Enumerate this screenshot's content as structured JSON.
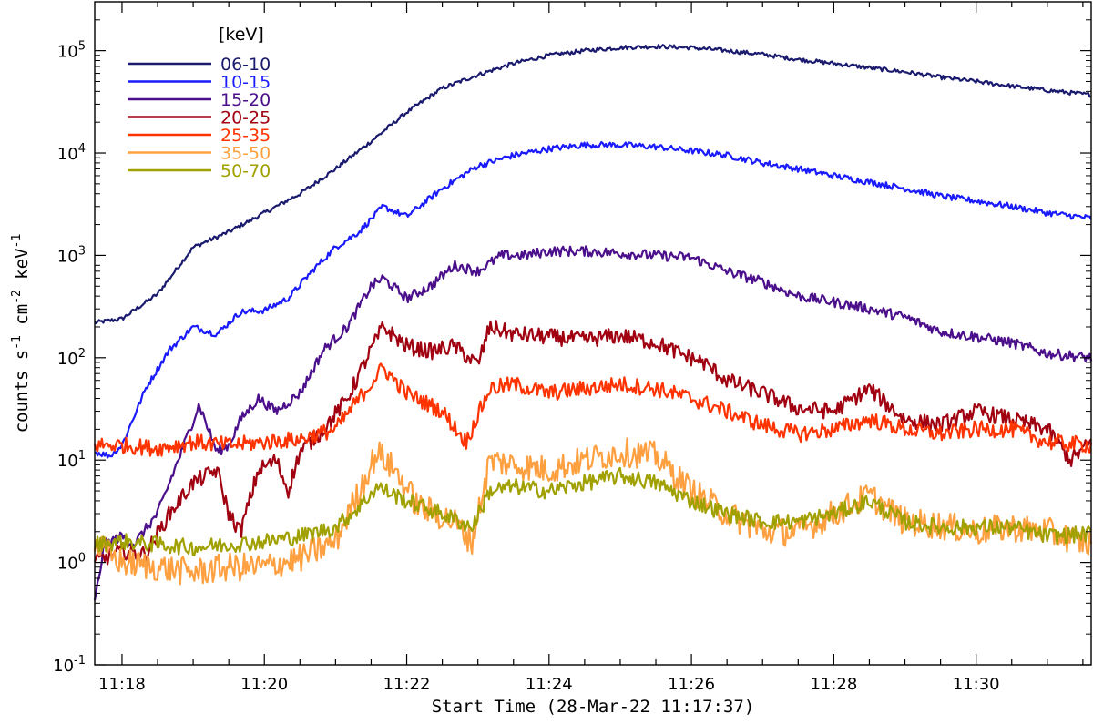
{
  "chart_data": {
    "type": "line",
    "x_axis": {
      "label": "Start Time (28-Mar-22 11:17:37)",
      "range": [
        "11:17:37",
        "11:31:37"
      ],
      "ticks": [
        "11:18",
        "11:20",
        "11:22",
        "11:24",
        "11:26",
        "11:28",
        "11:30"
      ]
    },
    "y_axis": {
      "label_parts": [
        "counts s",
        "-1",
        " cm",
        "-2",
        " keV",
        "-1"
      ],
      "scale": "log",
      "range": [
        0.1,
        300000
      ],
      "ticks": [
        {
          "base": "10",
          "exp": "-1",
          "value": 0.1
        },
        {
          "base": "10",
          "exp": "0",
          "value": 1
        },
        {
          "base": "10",
          "exp": "1",
          "value": 10
        },
        {
          "base": "10",
          "exp": "2",
          "value": 100
        },
        {
          "base": "10",
          "exp": "3",
          "value": 1000
        },
        {
          "base": "10",
          "exp": "4",
          "value": 10000
        },
        {
          "base": "10",
          "exp": "5",
          "value": 100000
        }
      ]
    },
    "legend_title": "[keV]",
    "legend_position": "top-left",
    "series": [
      {
        "name": "06-10",
        "color": "#1a1a6e",
        "noise": 0.02,
        "points": [
          [
            "11:17:37",
            220
          ],
          [
            "11:18:00",
            240
          ],
          [
            "11:18:30",
            420
          ],
          [
            "11:19:00",
            1200
          ],
          [
            "11:19:30",
            1700
          ],
          [
            "11:20:00",
            2600
          ],
          [
            "11:20:30",
            4000
          ],
          [
            "11:21:00",
            7000
          ],
          [
            "11:21:30",
            13000
          ],
          [
            "11:22:00",
            25000
          ],
          [
            "11:22:30",
            43000
          ],
          [
            "11:23:00",
            58000
          ],
          [
            "11:23:30",
            75000
          ],
          [
            "11:24:00",
            90000
          ],
          [
            "11:24:30",
            100000
          ],
          [
            "11:25:00",
            107000
          ],
          [
            "11:25:30",
            110000
          ],
          [
            "11:26:00",
            107000
          ],
          [
            "11:26:30",
            100000
          ],
          [
            "11:27:00",
            92000
          ],
          [
            "11:27:30",
            82000
          ],
          [
            "11:28:00",
            75000
          ],
          [
            "11:28:30",
            68000
          ],
          [
            "11:29:00",
            62000
          ],
          [
            "11:29:30",
            55000
          ],
          [
            "11:30:00",
            50000
          ],
          [
            "11:30:30",
            45000
          ],
          [
            "11:31:00",
            41000
          ],
          [
            "11:31:37",
            37000
          ]
        ]
      },
      {
        "name": "10-15",
        "color": "#1a1aff",
        "noise": 0.03,
        "points": [
          [
            "11:17:37",
            12
          ],
          [
            "11:17:50",
            11
          ],
          [
            "11:18:00",
            14
          ],
          [
            "11:18:20",
            50
          ],
          [
            "11:18:40",
            120
          ],
          [
            "11:19:00",
            200
          ],
          [
            "11:19:20",
            170
          ],
          [
            "11:19:40",
            280
          ],
          [
            "11:20:00",
            290
          ],
          [
            "11:20:20",
            380
          ],
          [
            "11:20:40",
            700
          ],
          [
            "11:21:00",
            1200
          ],
          [
            "11:21:20",
            1700
          ],
          [
            "11:21:40",
            3000
          ],
          [
            "11:22:00",
            2400
          ],
          [
            "11:22:30",
            4500
          ],
          [
            "11:23:00",
            7500
          ],
          [
            "11:23:30",
            9500
          ],
          [
            "11:24:00",
            11000
          ],
          [
            "11:24:30",
            12000
          ],
          [
            "11:25:00",
            12000
          ],
          [
            "11:25:30",
            11500
          ],
          [
            "11:26:00",
            10500
          ],
          [
            "11:26:30",
            9500
          ],
          [
            "11:27:00",
            8000
          ],
          [
            "11:27:30",
            7000
          ],
          [
            "11:28:00",
            6000
          ],
          [
            "11:28:30",
            5200
          ],
          [
            "11:29:00",
            4500
          ],
          [
            "11:29:30",
            3800
          ],
          [
            "11:30:00",
            3400
          ],
          [
            "11:30:30",
            3000
          ],
          [
            "11:31:00",
            2600
          ],
          [
            "11:31:37",
            2300
          ]
        ]
      },
      {
        "name": "15-20",
        "color": "#4b0f8c",
        "noise": 0.05,
        "points": [
          [
            "11:17:37",
            0.4
          ],
          [
            "11:17:45",
            1.5
          ],
          [
            "11:18:00",
            1.8
          ],
          [
            "11:18:10",
            1.5
          ],
          [
            "11:18:30",
            3
          ],
          [
            "11:18:50",
            12
          ],
          [
            "11:19:05",
            35
          ],
          [
            "11:19:20",
            12
          ],
          [
            "11:19:30",
            14
          ],
          [
            "11:19:40",
            25
          ],
          [
            "11:19:55",
            40
          ],
          [
            "11:20:10",
            30
          ],
          [
            "11:20:30",
            45
          ],
          [
            "11:20:50",
            120
          ],
          [
            "11:21:10",
            200
          ],
          [
            "11:21:30",
            500
          ],
          [
            "11:21:40",
            600
          ],
          [
            "11:22:00",
            380
          ],
          [
            "11:22:20",
            500
          ],
          [
            "11:22:40",
            800
          ],
          [
            "11:23:00",
            700
          ],
          [
            "11:23:20",
            1000
          ],
          [
            "11:23:40",
            1000
          ],
          [
            "11:24:00",
            1100
          ],
          [
            "11:24:30",
            1100
          ],
          [
            "11:25:00",
            1050
          ],
          [
            "11:25:30",
            1000
          ],
          [
            "11:26:00",
            950
          ],
          [
            "11:26:30",
            700
          ],
          [
            "11:27:00",
            550
          ],
          [
            "11:27:30",
            400
          ],
          [
            "11:28:00",
            350
          ],
          [
            "11:28:30",
            300
          ],
          [
            "11:29:00",
            250
          ],
          [
            "11:29:30",
            180
          ],
          [
            "11:30:00",
            160
          ],
          [
            "11:30:30",
            140
          ],
          [
            "11:31:00",
            110
          ],
          [
            "11:31:37",
            100
          ]
        ]
      },
      {
        "name": "20-25",
        "color": "#a00010",
        "noise": 0.08,
        "points": [
          [
            "11:17:37",
            1.0
          ],
          [
            "11:18:00",
            1.3
          ],
          [
            "11:18:20",
            1.2
          ],
          [
            "11:18:40",
            3
          ],
          [
            "11:19:00",
            6
          ],
          [
            "11:19:20",
            8
          ],
          [
            "11:19:30",
            3
          ],
          [
            "11:19:40",
            2
          ],
          [
            "11:19:55",
            8
          ],
          [
            "11:20:10",
            10
          ],
          [
            "11:20:20",
            5
          ],
          [
            "11:20:30",
            12
          ],
          [
            "11:20:50",
            20
          ],
          [
            "11:21:10",
            40
          ],
          [
            "11:21:30",
            120
          ],
          [
            "11:21:40",
            200
          ],
          [
            "11:22:00",
            130
          ],
          [
            "11:22:20",
            115
          ],
          [
            "11:22:40",
            130
          ],
          [
            "11:23:00",
            85
          ],
          [
            "11:23:10",
            200
          ],
          [
            "11:23:30",
            170
          ],
          [
            "11:24:00",
            160
          ],
          [
            "11:24:30",
            150
          ],
          [
            "11:25:00",
            165
          ],
          [
            "11:25:30",
            140
          ],
          [
            "11:25:50",
            110
          ],
          [
            "11:26:10",
            90
          ],
          [
            "11:26:30",
            60
          ],
          [
            "11:27:00",
            45
          ],
          [
            "11:27:30",
            32
          ],
          [
            "11:28:00",
            30
          ],
          [
            "11:28:30",
            50
          ],
          [
            "11:28:45",
            35
          ],
          [
            "11:29:00",
            25
          ],
          [
            "11:29:30",
            22
          ],
          [
            "11:30:00",
            30
          ],
          [
            "11:30:30",
            25
          ],
          [
            "11:31:00",
            20
          ],
          [
            "11:31:20",
            10
          ],
          [
            "11:31:37",
            15
          ]
        ]
      },
      {
        "name": "25-35",
        "color": "#ff3300",
        "noise": 0.08,
        "points": [
          [
            "11:17:37",
            14
          ],
          [
            "11:18:00",
            14
          ],
          [
            "11:18:30",
            13
          ],
          [
            "11:19:00",
            15
          ],
          [
            "11:19:30",
            14
          ],
          [
            "11:20:00",
            15
          ],
          [
            "11:20:30",
            16
          ],
          [
            "11:21:00",
            20
          ],
          [
            "11:21:20",
            40
          ],
          [
            "11:21:40",
            80
          ],
          [
            "11:22:00",
            45
          ],
          [
            "11:22:30",
            30
          ],
          [
            "11:22:50",
            15
          ],
          [
            "11:23:10",
            50
          ],
          [
            "11:23:30",
            55
          ],
          [
            "11:24:00",
            45
          ],
          [
            "11:24:30",
            50
          ],
          [
            "11:25:00",
            55
          ],
          [
            "11:25:30",
            50
          ],
          [
            "11:26:00",
            40
          ],
          [
            "11:26:30",
            30
          ],
          [
            "11:27:00",
            22
          ],
          [
            "11:27:30",
            18
          ],
          [
            "11:28:00",
            20
          ],
          [
            "11:28:30",
            25
          ],
          [
            "11:29:00",
            20
          ],
          [
            "11:29:30",
            18
          ],
          [
            "11:30:00",
            20
          ],
          [
            "11:30:30",
            20
          ],
          [
            "11:31:00",
            15
          ],
          [
            "11:31:37",
            14
          ]
        ]
      },
      {
        "name": "35-50",
        "color": "#ffa040",
        "noise": 0.14,
        "points": [
          [
            "11:17:37",
            1.5
          ],
          [
            "11:18:00",
            1.0
          ],
          [
            "11:18:30",
            0.9
          ],
          [
            "11:19:00",
            0.8
          ],
          [
            "11:19:30",
            0.9
          ],
          [
            "11:20:00",
            0.9
          ],
          [
            "11:20:30",
            1.1
          ],
          [
            "11:21:00",
            1.6
          ],
          [
            "11:21:20",
            5
          ],
          [
            "11:21:35",
            12
          ],
          [
            "11:21:50",
            8
          ],
          [
            "11:22:10",
            3.5
          ],
          [
            "11:22:40",
            2.5
          ],
          [
            "11:22:55",
            1.6
          ],
          [
            "11:23:10",
            10
          ],
          [
            "11:23:30",
            9
          ],
          [
            "11:24:00",
            8
          ],
          [
            "11:24:30",
            10
          ],
          [
            "11:25:00",
            12
          ],
          [
            "11:25:30",
            11
          ],
          [
            "11:26:00",
            5
          ],
          [
            "11:26:30",
            3
          ],
          [
            "11:27:00",
            2
          ],
          [
            "11:27:30",
            2
          ],
          [
            "11:28:00",
            3
          ],
          [
            "11:28:30",
            4.5
          ],
          [
            "11:29:00",
            2.5
          ],
          [
            "11:29:30",
            2.3
          ],
          [
            "11:30:00",
            2
          ],
          [
            "11:30:30",
            2.2
          ],
          [
            "11:31:00",
            2
          ],
          [
            "11:31:37",
            1.5
          ]
        ]
      },
      {
        "name": "50-70",
        "color": "#a0a000",
        "noise": 0.08,
        "points": [
          [
            "11:17:37",
            1.5
          ],
          [
            "11:18:00",
            1.6
          ],
          [
            "11:18:30",
            1.5
          ],
          [
            "11:19:00",
            1.4
          ],
          [
            "11:19:30",
            1.5
          ],
          [
            "11:20:00",
            1.6
          ],
          [
            "11:20:30",
            1.8
          ],
          [
            "11:21:00",
            2.2
          ],
          [
            "11:21:20",
            3.5
          ],
          [
            "11:21:35",
            5.5
          ],
          [
            "11:22:00",
            4
          ],
          [
            "11:22:30",
            3
          ],
          [
            "11:22:55",
            2.2
          ],
          [
            "11:23:10",
            5
          ],
          [
            "11:23:30",
            5.5
          ],
          [
            "11:24:00",
            5
          ],
          [
            "11:24:30",
            6
          ],
          [
            "11:25:00",
            7
          ],
          [
            "11:25:30",
            6
          ],
          [
            "11:26:00",
            4
          ],
          [
            "11:26:30",
            3
          ],
          [
            "11:27:00",
            2.5
          ],
          [
            "11:27:30",
            2.5
          ],
          [
            "11:28:00",
            3
          ],
          [
            "11:28:30",
            4
          ],
          [
            "11:29:00",
            2.5
          ],
          [
            "11:29:30",
            2.2
          ],
          [
            "11:30:00",
            2.2
          ],
          [
            "11:30:30",
            2.2
          ],
          [
            "11:31:00",
            1.8
          ],
          [
            "11:31:37",
            1.9
          ]
        ]
      }
    ]
  }
}
